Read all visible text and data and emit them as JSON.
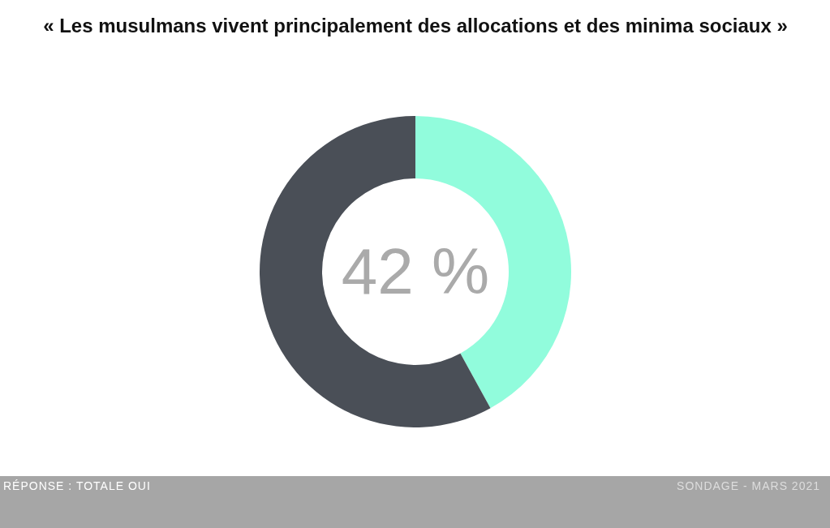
{
  "chart_data": {
    "type": "donut",
    "title": "« Les musulmans vivent principalement des allocations et des minima sociaux »",
    "categories": [
      null,
      null
    ],
    "values": [
      42,
      58
    ],
    "colors": [
      "#91fcdc",
      "#4a4f57"
    ],
    "annotations": [
      "42 %",
      "RÉPONSE : TOTALE OUI",
      "SONDAGE - MARS 2021"
    ]
  }
}
